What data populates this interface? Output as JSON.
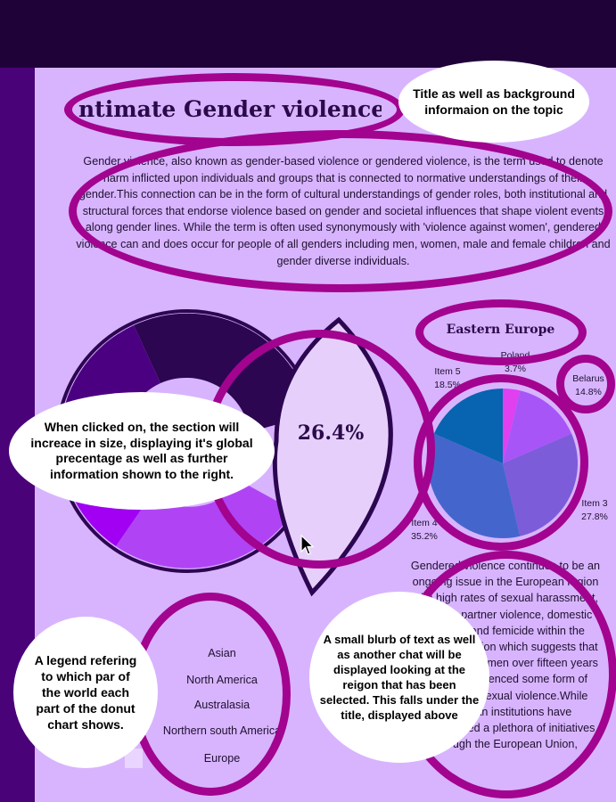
{
  "main": {
    "title": "ntimate Gender violence",
    "intro": "Gender violence, also known as gender-based violence or gendered violence, is the term used to denote harm inflicted upon individuals and groups that is connected to normative understandings of their gender.This connection can be in the form of cultural understandings of gender roles, both institutional and structural forces that endorse violence based on gender and societal influences that shape violent events along gender lines. While the term is often used synonymously with 'violence against women', gendered violence can and does occur for people of all genders including men, women, male and female children and gender diverse individuals."
  },
  "donut": {
    "highlight_percent": "26.4%",
    "colors": [
      "#2c0650",
      "#4b0082",
      "#a100f2",
      "#b044f5",
      "#e6d0fb"
    ]
  },
  "region": {
    "title": "Eastern Europe",
    "blurb": "Gendered violence continues to be an ongoing issue in the European region with high rates of sexual harassment, intimate partner violence, domestic violence and femicide within the European region which suggests that one-third of women over fifteen years of age experienced some form of physical or sexual violence.While European institutions have implemented a plethora of initiatives through the European Union,"
  },
  "chart_data": {
    "type": "pie",
    "title": "Eastern Europe",
    "series": [
      {
        "label": "Poland",
        "value": 3.7,
        "color": "#e040f0"
      },
      {
        "label": "Belarus",
        "value": 14.8,
        "color": "#a855f7"
      },
      {
        "label": "Item 3",
        "value": 27.8,
        "color": "#7c5cd9"
      },
      {
        "label": "Item 4",
        "value": 35.2,
        "color": "#4466cc"
      },
      {
        "label": "Item 5",
        "value": 18.5,
        "color": "#0863b0"
      }
    ]
  },
  "legend": {
    "items": [
      "Asian",
      "North America",
      "Australasia",
      "Northern south America",
      "Europe"
    ]
  },
  "annotations": {
    "title_note": "Title as well as background informaion on the topic",
    "click_note": "When clicked on, the section will increace in size, displaying it's global precentage as well as further information shown to the right.",
    "legend_note": "A legend refering to which par of the world each part of the donut chart shows.",
    "blurb_note": "A small blurb of text as well as another chat will be displayed looking at the reigon that has been selected. This falls under the title, displayed above"
  },
  "theme": {
    "topbar": "#1f0338",
    "sidebar": "#4a0278",
    "background": "#d8b4fe",
    "annotation_ring": "#a2038f"
  }
}
